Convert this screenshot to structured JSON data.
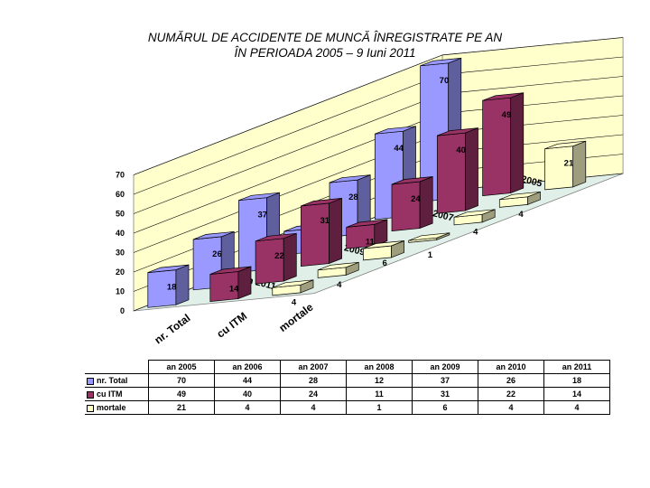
{
  "title_line1": "NUMĂRUL DE ACCIDENTE DE MUNCĂ ÎNREGISTRATE PE AN",
  "title_line2": "ÎN PERIOADA  2005 – 9 Iuni  2011",
  "chart_data": {
    "type": "bar",
    "variant": "3d-grouped",
    "years": [
      "an 2005",
      "an 2006",
      "an 2007",
      "an 2008",
      "an 2009",
      "an 2010",
      "an 2011"
    ],
    "depth_labels": [
      "an 2005",
      "an 2007",
      "an 2009",
      "an 2011"
    ],
    "series": [
      {
        "name": "nr. Total",
        "axis_label": "nr. Total",
        "color": "#9999ff",
        "values": [
          70,
          44,
          28,
          12,
          37,
          26,
          18
        ]
      },
      {
        "name": "cu ITM",
        "axis_label": "cu ITM",
        "color": "#993366",
        "values": [
          49,
          40,
          24,
          11,
          31,
          22,
          14
        ]
      },
      {
        "name": "mortale",
        "axis_label": "mortale",
        "color": "#ffffcc",
        "values": [
          21,
          4,
          4,
          1,
          6,
          4,
          4
        ]
      }
    ],
    "y_ticks": [
      "0",
      "10",
      "20",
      "30",
      "40",
      "50",
      "60",
      "70"
    ],
    "ylim": [
      0,
      70
    ],
    "wall_color": "#ffffcc",
    "floor_color": "#e0f0e8",
    "grid": true,
    "legend": "table below chart"
  }
}
